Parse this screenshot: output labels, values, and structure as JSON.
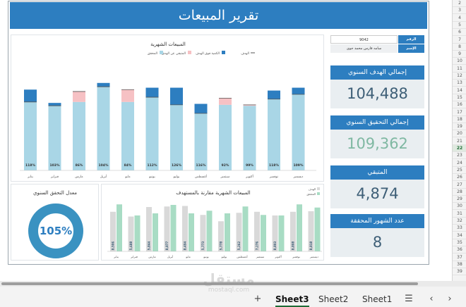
{
  "dashboard": {
    "title": "تقرير المبيعات",
    "employee": {
      "id_label": "الرقم الوظيفي",
      "id_value": "9042",
      "name_label": "الإسم",
      "name_value": "سامه فارس محمد جوى"
    },
    "kpis": [
      {
        "label": "إجمالي الهدف السنوي",
        "value": "104,488"
      },
      {
        "label": "إجمالي التحقيق السنوي",
        "value": "109,362"
      },
      {
        "label": "المتبقي",
        "value": "4,874"
      },
      {
        "label": "عدد الشهور المحققة",
        "value": "8"
      }
    ],
    "colors": {
      "brand": "#2d7ec0",
      "achieved": "#a9d6e6",
      "above_target": "#2d7ec0",
      "remaining": "#f6c1c4",
      "comparison_target": "#d9d9d9",
      "comparison_actual": "#a8dcc4",
      "donut": "#3a92c1"
    }
  },
  "chart_data": [
    {
      "type": "bar",
      "title": "المبيعات الشهرية",
      "legend_placement": "top",
      "legend": [
        "الهدف",
        "الكمية فوق الهدف",
        "المتبقي عن الهدف",
        "المحقق"
      ],
      "categories": [
        "يناير",
        "فبراير",
        "مارس",
        "أبريل",
        "مايو",
        "يونيو",
        "يوليو",
        "أغسطس",
        "سبتمبر",
        "أكتوبر",
        "نوفمبر",
        "ديسمبر"
      ],
      "achievement_pct_labels": [
        "118%",
        "103%",
        "86%",
        "104%",
        "84%",
        "112%",
        "126%",
        "116%",
        "92%",
        "99%",
        "118%",
        "109%"
      ],
      "series": [
        {
          "name": "المحقق",
          "values": [
            0.72,
            0.68,
            0.72,
            0.88,
            0.72,
            0.77,
            0.69,
            0.6,
            0.69,
            0.68,
            0.75,
            0.8
          ]
        },
        {
          "name": "الكمية فوق الهدف",
          "values": [
            0.13,
            0.03,
            0.0,
            0.04,
            0.0,
            0.1,
            0.18,
            0.1,
            0.0,
            0.0,
            0.09,
            0.07
          ]
        },
        {
          "name": "المتبقي عن الهدف",
          "values": [
            0.0,
            0.0,
            0.11,
            0.0,
            0.13,
            0.0,
            0.0,
            0.0,
            0.07,
            0.01,
            0.0,
            0.0
          ]
        }
      ],
      "grid": false
    },
    {
      "type": "bar",
      "title": "المبيعات الشهرية مقارنة بالمستهدف",
      "legend_placement": "top-left",
      "legend": [
        "الهدف",
        "المحقق"
      ],
      "categories": [
        "يناير",
        "فبراير",
        "مارس",
        "أبريل",
        "مايو",
        "يونيو",
        "يوليو",
        "أغسطس",
        "سبتمبر",
        "أكتوبر",
        "نوفمبر",
        "ديسمبر"
      ],
      "series": [
        {
          "name": "الهدف",
          "values": [
            0.75,
            0.66,
            0.84,
            0.85,
            0.86,
            0.69,
            0.57,
            0.73,
            0.75,
            0.68,
            0.75,
            0.76
          ]
        },
        {
          "name": "المحقق",
          "values": [
            0.89,
            0.68,
            0.72,
            0.88,
            0.72,
            0.77,
            0.72,
            0.85,
            0.69,
            0.68,
            0.89,
            0.83
          ]
        }
      ],
      "bar_labels": [
        "8,506",
        "5,688",
        "5,844",
        "8,877",
        "8,494",
        "5,773",
        "5,778",
        "5,262",
        "7,276",
        "8,803",
        "8,808",
        "8,818"
      ],
      "grid": false
    },
    {
      "type": "pie",
      "title": "معدل التحقق السنوي",
      "center_label": "105%",
      "values": [
        1.0
      ]
    }
  ],
  "sheet": {
    "row_numbers": [
      "2",
      "3",
      "4",
      "5",
      "6",
      "7",
      "8",
      "9",
      "10",
      "11",
      "12",
      "13",
      "14",
      "15",
      "16",
      "17",
      "18",
      "19",
      "20",
      "21",
      "22",
      "23",
      "24",
      "25",
      "26",
      "27",
      "28",
      "29",
      "30",
      "31",
      "32",
      "33",
      "34",
      "35",
      "36",
      "37",
      "38",
      "39"
    ],
    "selected_row": "22",
    "tabs": [
      "Sheet3",
      "Sheet2",
      "Sheet1"
    ],
    "active_tab": "Sheet3",
    "watermark_ar": "مستقل",
    "watermark_en": "mostaql.com"
  }
}
